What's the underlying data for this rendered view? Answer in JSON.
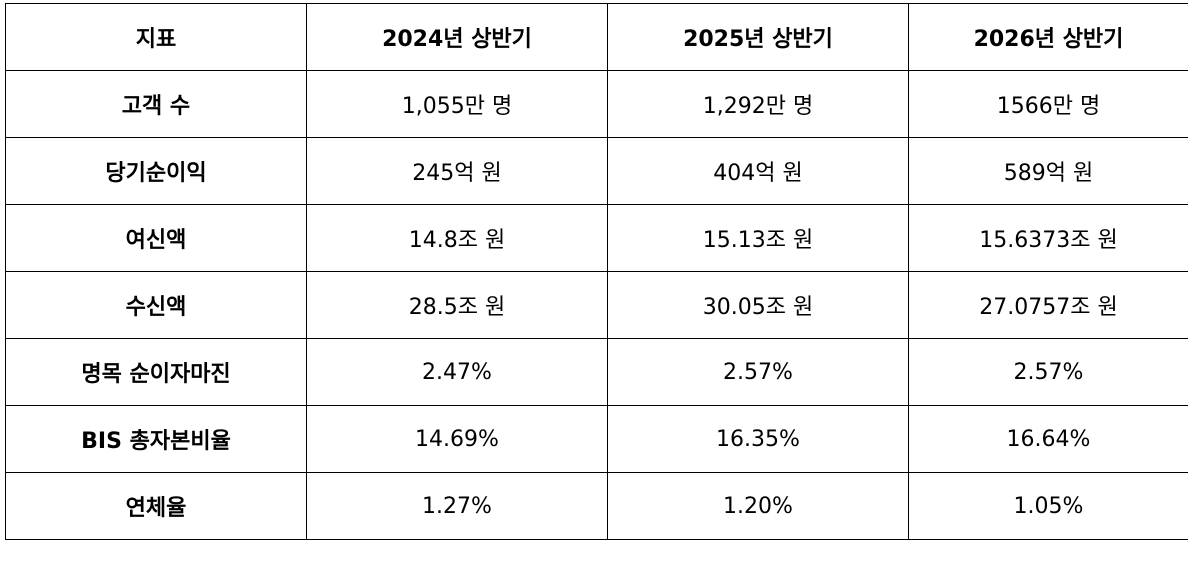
{
  "table": {
    "headers": [
      "지표",
      "2024년 상반기",
      "2025년 상반기",
      "2026년 상반기"
    ],
    "rows": [
      [
        "고객 수",
        "1,055만 명",
        "1,292만 명",
        "1566만 명"
      ],
      [
        "당기순이익",
        "245억 원",
        "404억 원",
        "589억 원"
      ],
      [
        "여신액",
        "14.8조 원",
        "15.13조 원",
        "15.6373조 원"
      ],
      [
        "수신액",
        "28.5조 원",
        "30.05조 원",
        "27.0757조 원"
      ],
      [
        "명목 순이자마진",
        "2.47%",
        "2.57%",
        "2.57%"
      ],
      [
        "BIS 총자본비율",
        "14.69%",
        "16.35%",
        "16.64%"
      ],
      [
        "연체율",
        "1.27%",
        "1.20%",
        "1.05%"
      ]
    ]
  }
}
